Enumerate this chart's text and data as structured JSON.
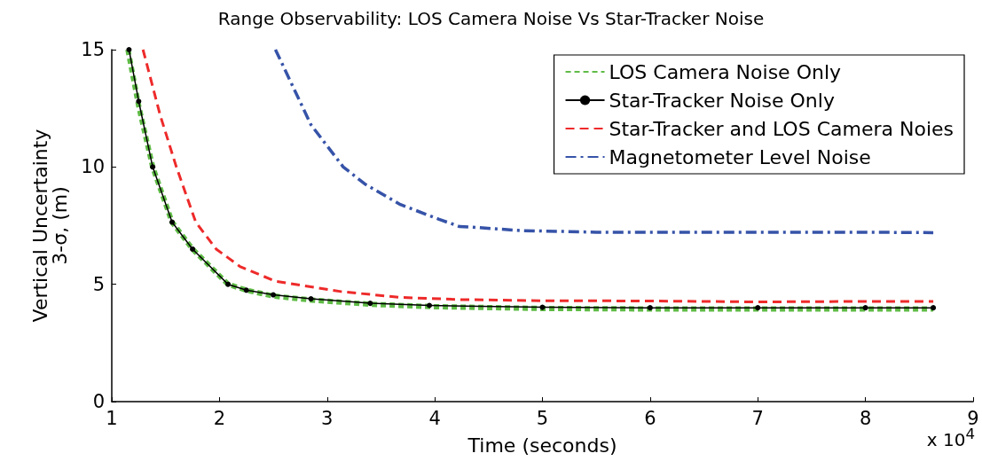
{
  "chart_data": {
    "type": "line",
    "title": "Range Observability: LOS Camera Noise Vs Star-Tracker Noise",
    "xlabel": "Time (seconds)",
    "ylabel": "Vertical Uncertainty\n3-σ, (m)",
    "annotations": [
      "x 10$^{4}$"
    ],
    "xlim": [
      1,
      9
    ],
    "xticks": [
      1,
      2,
      3,
      4,
      5,
      6,
      7,
      8,
      9
    ],
    "ylim": [
      0,
      15
    ],
    "yticks": [
      0,
      5,
      10,
      15
    ],
    "grid": false,
    "legend": "top right",
    "series": [
      {
        "name": "LOS Camera Noise Only",
        "color": "#5fbb46",
        "line_style": "dotted",
        "marker": "none",
        "x": [
          1.15,
          1.25,
          1.38,
          1.56,
          1.75,
          2.08,
          2.25,
          2.5,
          2.85,
          3.4,
          3.95,
          5,
          6,
          7,
          8,
          8.63
        ],
        "values": [
          15,
          12.6,
          10,
          7.65,
          6.5,
          5.0,
          4.75,
          4.5,
          4.33,
          4.15,
          4.05,
          3.97,
          3.95,
          3.95,
          3.95,
          3.95
        ]
      },
      {
        "name": "Star-Tracker Noise Only",
        "color": "#000000",
        "line_style": "solid",
        "marker": "circle",
        "x": [
          1.16,
          1.25,
          1.38,
          1.56,
          1.75,
          2.08,
          2.25,
          2.5,
          2.85,
          3.4,
          3.95,
          5,
          6,
          7,
          8,
          8.63
        ],
        "values": [
          15,
          12.8,
          10,
          7.65,
          6.5,
          5.0,
          4.75,
          4.55,
          4.38,
          4.19,
          4.1,
          4.02,
          4.0,
          4.0,
          4.0,
          4.0
        ]
      },
      {
        "name": "Star-Tracker and LOS Camera Noies",
        "color": "#ee2a2a",
        "line_style": "dashed",
        "marker": "none",
        "x": [
          1.29,
          1.45,
          1.6,
          1.78,
          1.97,
          2.19,
          2.52,
          3.13,
          3.68,
          4.23,
          5,
          6,
          7,
          8,
          8.63
        ],
        "values": [
          15,
          12.2,
          10,
          7.65,
          6.5,
          5.76,
          5.13,
          4.69,
          4.44,
          4.35,
          4.3,
          4.29,
          4.25,
          4.27,
          4.27
        ]
      },
      {
        "name": "Magnetometer Level Noise",
        "color": "#3653a8",
        "line_style": "dashdot",
        "marker": "none",
        "x": [
          2.52,
          2.85,
          3.15,
          3.35,
          3.68,
          4.04,
          4.23,
          4.39,
          4.8,
          5.5,
          6,
          7,
          8,
          8.63
        ],
        "values": [
          15,
          11.8,
          10,
          9.28,
          8.4,
          7.77,
          7.46,
          7.42,
          7.29,
          7.22,
          7.22,
          7.22,
          7.22,
          7.2
        ]
      }
    ]
  }
}
